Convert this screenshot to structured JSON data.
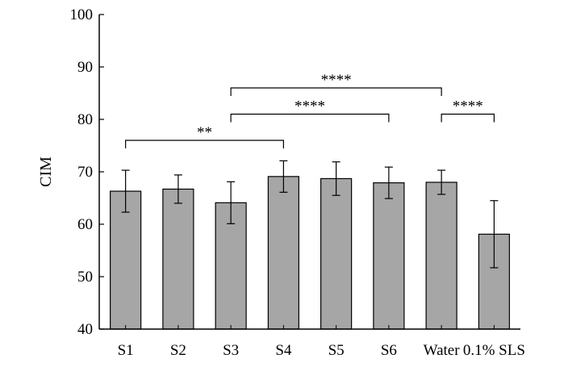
{
  "chart_data": {
    "type": "bar",
    "ylabel": "CIM",
    "ylim": [
      40,
      100
    ],
    "yticks": [
      40,
      50,
      60,
      70,
      80,
      90,
      100
    ],
    "categories": [
      "S1",
      "S2",
      "S3",
      "S4",
      "S5",
      "S6",
      "Water",
      "0.1% SLS"
    ],
    "values": [
      66.3,
      66.7,
      64.1,
      69.1,
      68.7,
      67.9,
      68.0,
      58.1
    ],
    "errors": [
      4.0,
      2.7,
      4.0,
      3.0,
      3.2,
      3.0,
      2.3,
      6.4
    ],
    "bar_color": "#a6a6a6",
    "grid": false,
    "significance": [
      {
        "from": "S1",
        "to": "S4",
        "label": "**",
        "level": 76
      },
      {
        "from": "S3",
        "to": "S6",
        "label": "****",
        "level": 81
      },
      {
        "from": "S3",
        "to": "Water",
        "label": "****",
        "level": 86
      },
      {
        "from": "Water",
        "to": "0.1% SLS",
        "label": "****",
        "level": 81
      }
    ]
  }
}
